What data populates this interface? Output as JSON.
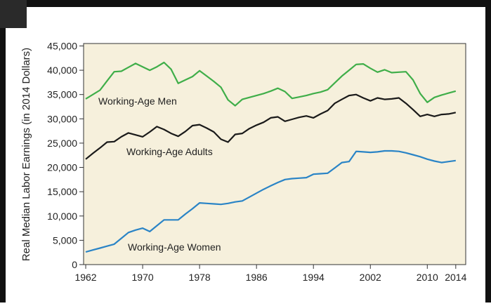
{
  "chart_data": {
    "type": "line",
    "y_label": "Real Median Labor Earnings (in 2014 Dollars)",
    "x": [
      1962,
      1963,
      1964,
      1965,
      1966,
      1967,
      1968,
      1969,
      1970,
      1971,
      1972,
      1973,
      1974,
      1975,
      1976,
      1977,
      1978,
      1979,
      1980,
      1981,
      1982,
      1983,
      1984,
      1985,
      1986,
      1987,
      1988,
      1989,
      1990,
      1991,
      1992,
      1993,
      1994,
      1995,
      1996,
      1997,
      1998,
      1999,
      2000,
      2001,
      2002,
      2003,
      2004,
      2005,
      2006,
      2007,
      2008,
      2009,
      2010,
      2011,
      2012,
      2013,
      2014
    ],
    "series": [
      {
        "name": "Working-Age Men",
        "color": "#3fae49",
        "values": [
          34100,
          35000,
          35900,
          37800,
          39700,
          39800,
          40600,
          41400,
          40700,
          40000,
          40700,
          41600,
          40200,
          37300,
          38000,
          38700,
          39900,
          38800,
          37700,
          36500,
          33900,
          32700,
          34000,
          34400,
          34800,
          35200,
          35700,
          36300,
          35600,
          34200,
          34500,
          34800,
          35200,
          35500,
          36000,
          37400,
          38800,
          40000,
          41200,
          41300,
          40400,
          39600,
          40100,
          39500,
          39600,
          39700,
          38000,
          35200,
          33400,
          34400,
          34900,
          35300,
          35700
        ]
      },
      {
        "name": "Working-Age Adults",
        "color": "#1a1a1a",
        "values": [
          21700,
          22900,
          24000,
          25200,
          25300,
          26300,
          27100,
          26700,
          26300,
          27300,
          28400,
          27800,
          27000,
          26400,
          27400,
          28600,
          28800,
          28100,
          27300,
          25800,
          25200,
          26800,
          27000,
          28000,
          28700,
          29300,
          30200,
          30400,
          29500,
          29900,
          30300,
          30600,
          30200,
          31000,
          31700,
          33200,
          34000,
          34800,
          35000,
          34300,
          33700,
          34300,
          34000,
          34100,
          34300,
          33200,
          31900,
          30500,
          30900,
          30500,
          30900,
          31000,
          31300
        ]
      },
      {
        "name": "Working-Age Women",
        "color": "#2a84c6",
        "values": [
          2600,
          3000,
          3400,
          3800,
          4200,
          5400,
          6600,
          7100,
          7500,
          6800,
          8000,
          9200,
          9200,
          9200,
          10400,
          11500,
          12700,
          12600,
          12500,
          12400,
          12600,
          12900,
          13100,
          13900,
          14700,
          15500,
          16200,
          16900,
          17500,
          17700,
          17800,
          17900,
          18600,
          18700,
          18800,
          19900,
          21000,
          21200,
          23300,
          23200,
          23100,
          23200,
          23400,
          23400,
          23300,
          23000,
          22600,
          22200,
          21700,
          21300,
          21000,
          21200,
          21400
        ]
      }
    ],
    "xlim": [
      1961.7,
      2015.4
    ],
    "xticks": [
      1962,
      1970,
      1978,
      1986,
      1994,
      2002,
      2010,
      2014
    ],
    "ylim": [
      0,
      45500
    ],
    "yticks": [
      0,
      {
        "value": 5000,
        "label": "5,000"
      },
      {
        "value": 10000,
        "label": "10,000"
      },
      {
        "value": 15000,
        "label": "15,000"
      },
      {
        "value": 20000,
        "label": "20,000"
      },
      {
        "value": 25000,
        "label": "25,000"
      },
      {
        "value": 30000,
        "label": "30,000"
      },
      {
        "value": 35000,
        "label": "35,000"
      },
      {
        "value": 40000,
        "label": "40,000"
      },
      {
        "value": 45000,
        "label": "45,000"
      }
    ]
  }
}
